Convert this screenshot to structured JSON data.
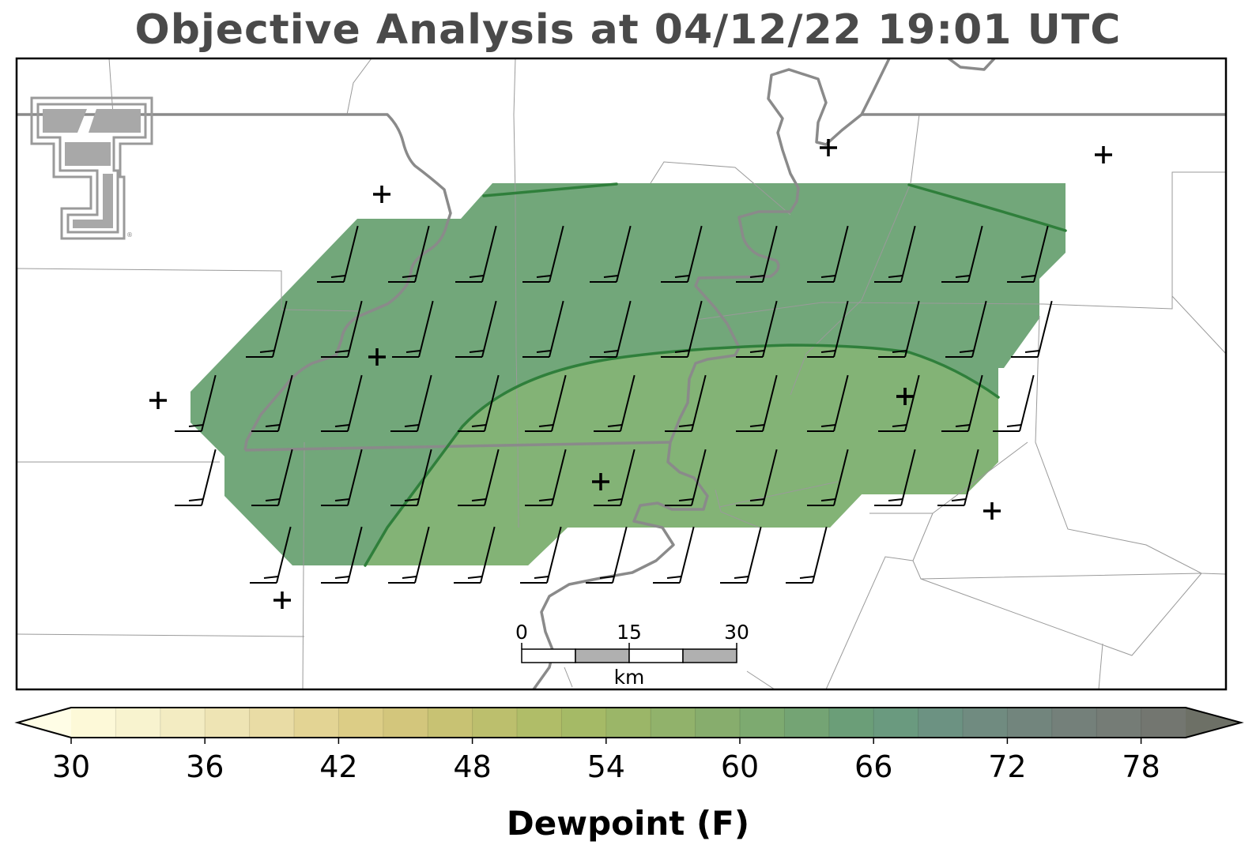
{
  "title": "Objective Analysis at 04/12/22 19:01 UTC",
  "logo": {
    "mark": "TT",
    "registered": "®"
  },
  "scalebar": {
    "ticks": [
      "0",
      "15",
      "30"
    ],
    "unit": "km"
  },
  "colorbar": {
    "label": "Dewpoint (F)",
    "ticks": [
      "30",
      "36",
      "42",
      "48",
      "54",
      "60",
      "66",
      "72",
      "78"
    ],
    "min": 30,
    "max": 80,
    "step": 2,
    "extend": "both",
    "colors": [
      "#fdf9d8",
      "#f8f3cf",
      "#f3ecc2",
      "#eee4b4",
      "#e9dca5",
      "#e3d494",
      "#dccd86",
      "#d3c67c",
      "#c8c273",
      "#bcbf6d",
      "#b0bd68",
      "#a5ba66",
      "#9bb668",
      "#91b26b",
      "#87ad6d",
      "#7daa70",
      "#74a474",
      "#6b9e78",
      "#6a9a7f",
      "#6c9282",
      "#708b80",
      "#72857d",
      "#74807a",
      "#757c76",
      "#737670"
    ]
  },
  "field": {
    "variable": "Dewpoint (F)",
    "regions": [
      {
        "name": "moist-region",
        "value": 64,
        "color": "#72a77a"
      },
      {
        "name": "drier-region",
        "value": 60,
        "color": "#83b376"
      }
    ],
    "contours": [
      {
        "name": "contour-upper-left",
        "value": 66,
        "color": "#2f7f3b"
      },
      {
        "name": "contour-upper-right",
        "value": 66,
        "color": "#2f7f3b"
      },
      {
        "name": "contour-main",
        "value": 62,
        "color": "#2f7f3b"
      }
    ]
  },
  "stations": {
    "symbol": "+",
    "count": 10
  },
  "wind_barbs": {
    "count": 60,
    "direction": "south-southwest"
  }
}
